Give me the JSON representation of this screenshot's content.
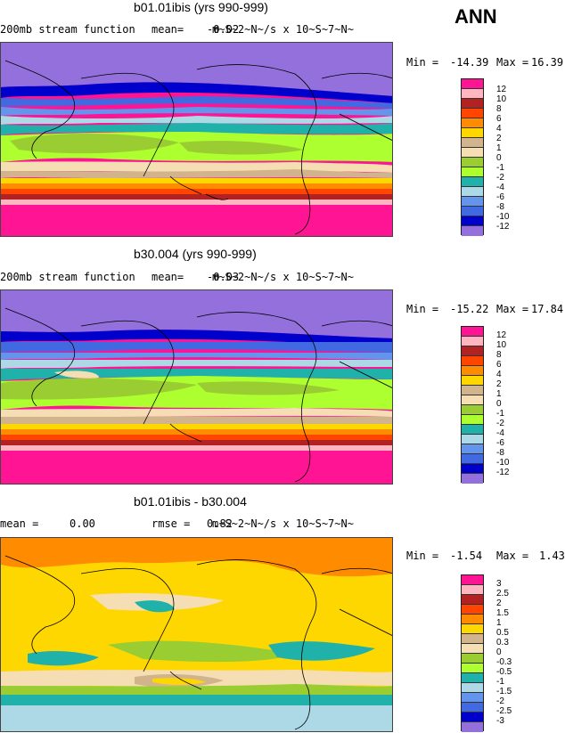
{
  "header": {
    "season": "ANN"
  },
  "panels": [
    {
      "title": "b01.01ibis (yrs 990-999)",
      "left_label": "200mb stream function",
      "mean_label": "mean=",
      "mean_value": "-0.02",
      "overlap_a": "10~S~7~N~",
      "units": "m~S~2~N~/s x 10~S~7~N~",
      "min_label": "Min =",
      "min_value": "-14.39",
      "max_label": "Max =",
      "max_value": "16.39",
      "colorbar_labels": [
        "12",
        "10",
        "8",
        "6",
        "4",
        "2",
        "1",
        "0",
        "-1",
        "-2",
        "-4",
        "-6",
        "-8",
        "-10",
        "-12"
      ],
      "colors": [
        "#ff1493",
        "#ffb6c1",
        "#b22222",
        "#ff4500",
        "#ff8c00",
        "#ffd700",
        "#d2b48c",
        "#f5deb3",
        "#9acd32",
        "#adff2f",
        "#20b2aa",
        "#add8e6",
        "#6495ed",
        "#4169e1",
        "#0000cd",
        "#9370db"
      ]
    },
    {
      "title": "b30.004 (yrs 990-999)",
      "left_label": "200mb stream function",
      "mean_label": "mean=",
      "mean_value": "-0.03",
      "overlap_a": "10~S~7~N~",
      "units": "m~S~2~N~/s x 10~S~7~N~",
      "min_label": "Min =",
      "min_value": "-15.22",
      "max_label": "Max =",
      "max_value": "17.84",
      "colorbar_labels": [
        "12",
        "10",
        "8",
        "6",
        "4",
        "2",
        "1",
        "0",
        "-1",
        "-2",
        "-4",
        "-6",
        "-8",
        "-10",
        "-12"
      ],
      "colors": [
        "#ff1493",
        "#ffb6c1",
        "#b22222",
        "#ff4500",
        "#ff8c00",
        "#ffd700",
        "#d2b48c",
        "#f5deb3",
        "#9acd32",
        "#adff2f",
        "#20b2aa",
        "#add8e6",
        "#6495ed",
        "#4169e1",
        "#0000cd",
        "#9370db"
      ]
    },
    {
      "title": "b01.01ibis - b30.004",
      "left_label": "mean =",
      "left_value": "0.00",
      "rmse_label": "rmse =",
      "rmse_value": "0.82",
      "overlap_a": "10~S~7~N~",
      "units": "m~S~2~N~/s x 10~S~7~N~",
      "min_label": "Min =",
      "min_value": "-1.54",
      "max_label": "Max =",
      "max_value": "1.43",
      "colorbar_labels": [
        "3",
        "2.5",
        "2",
        "1.5",
        "1",
        "0.5",
        "0.3",
        "0",
        "-0.3",
        "-0.5",
        "-1",
        "-1.5",
        "-2",
        "-2.5",
        "-3"
      ],
      "colors": [
        "#ff1493",
        "#ffb6c1",
        "#b22222",
        "#ff4500",
        "#ff8c00",
        "#ffd700",
        "#d2b48c",
        "#f5deb3",
        "#9acd32",
        "#adff2f",
        "#20b2aa",
        "#add8e6",
        "#6495ed",
        "#4169e1",
        "#0000cd",
        "#9370db"
      ]
    }
  ]
}
